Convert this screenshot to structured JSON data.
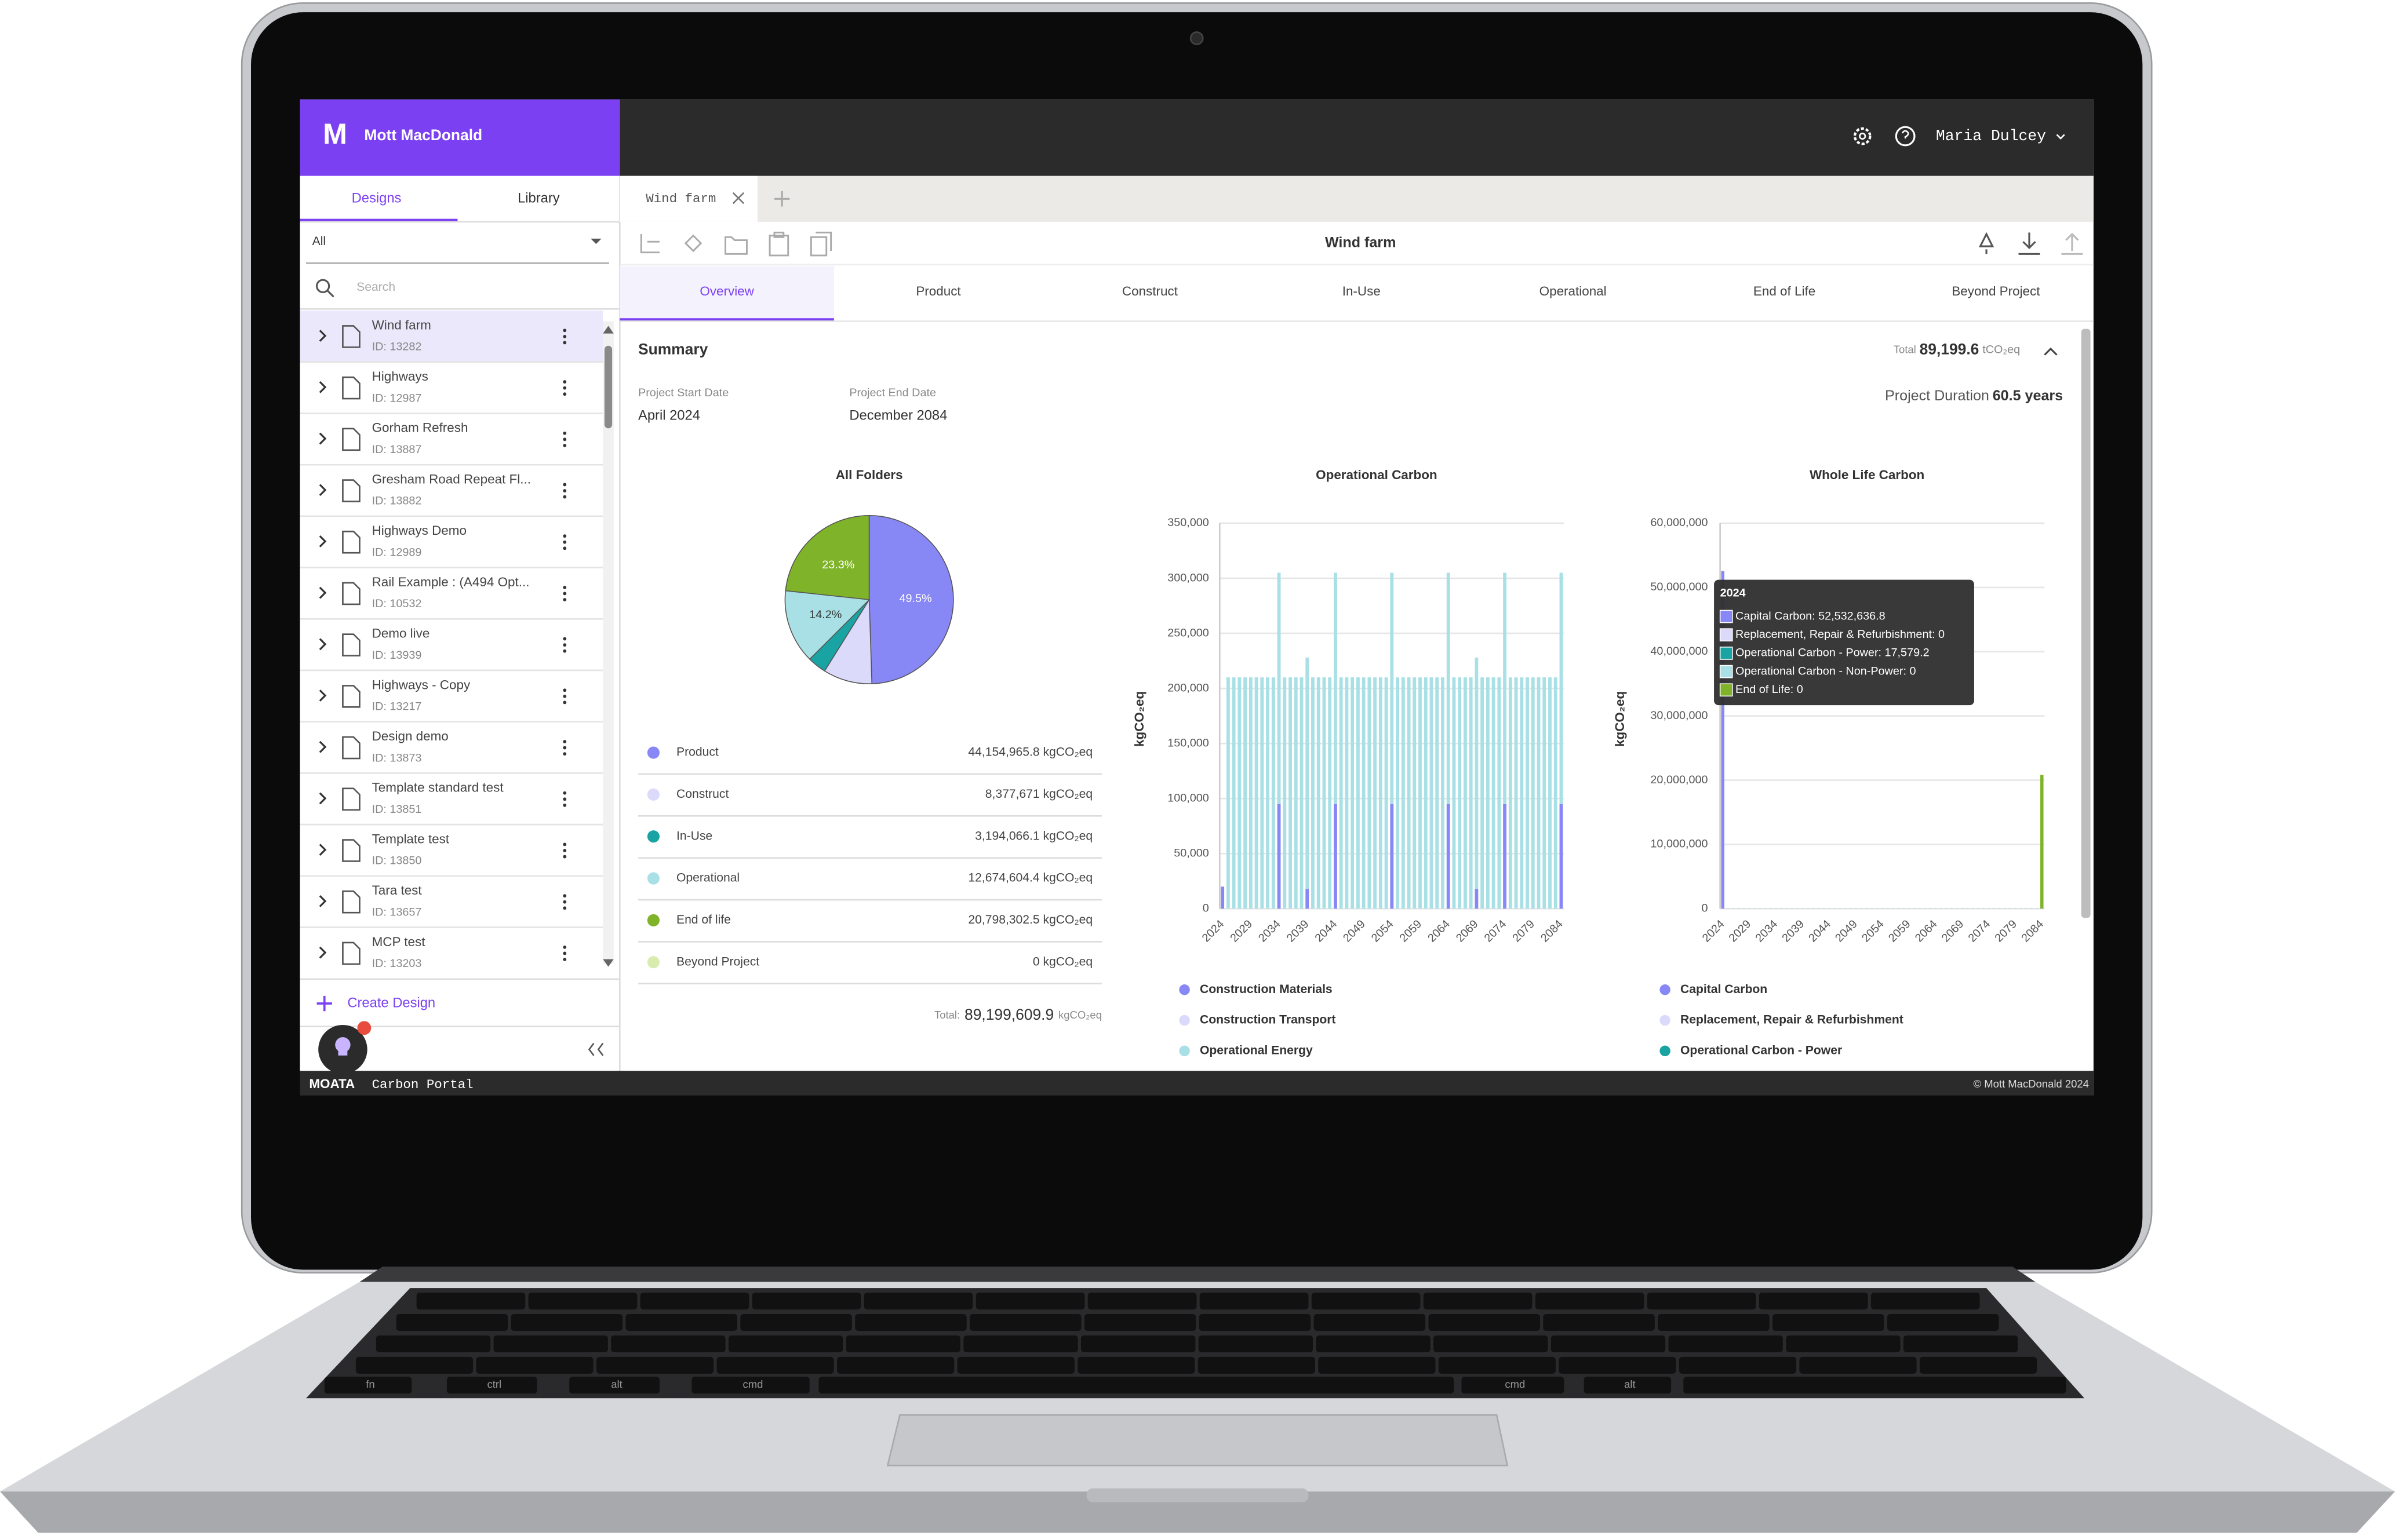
{
  "brand": {
    "logo": "M",
    "name": "Mott MacDonald"
  },
  "user": {
    "name": "Maria Dulcey"
  },
  "sidebar": {
    "tabs": [
      "Designs",
      "Library"
    ],
    "filter": "All",
    "search_placeholder": "Search",
    "designs": [
      {
        "name": "Wind farm",
        "id": "ID: 13282"
      },
      {
        "name": "Highways",
        "id": "ID: 12987"
      },
      {
        "name": "Gorham Refresh",
        "id": "ID: 13887"
      },
      {
        "name": "Gresham Road Repeat Fl...",
        "id": "ID: 13882"
      },
      {
        "name": "Highways Demo",
        "id": "ID: 12989"
      },
      {
        "name": "Rail Example : (A494 Opt...",
        "id": "ID: 10532"
      },
      {
        "name": "Demo live",
        "id": "ID: 13939"
      },
      {
        "name": "Highways - Copy",
        "id": "ID: 13217"
      },
      {
        "name": "Design demo",
        "id": "ID: 13873"
      },
      {
        "name": "Template standard test",
        "id": "ID: 13851"
      },
      {
        "name": "Template test",
        "id": "ID: 13850"
      },
      {
        "name": "Tara test",
        "id": "ID: 13657"
      },
      {
        "name": "MCP test",
        "id": "ID: 13203"
      }
    ],
    "create": "Create Design"
  },
  "open_tab": "Wind farm",
  "toolbar_title": "Wind farm",
  "nav": [
    "Overview",
    "Product",
    "Construct",
    "In-Use",
    "Operational",
    "End of Life",
    "Beyond Project"
  ],
  "summary": {
    "title": "Summary",
    "total_label": "Total",
    "total_value": "89,199.6",
    "total_unit": "tCO₂eq",
    "start_label": "Project Start Date",
    "start": "April 2024",
    "end_label": "Project End Date",
    "end": "December 2084",
    "duration_label": "Project Duration",
    "duration": "60.5 years"
  },
  "pie_chart": {
    "type": "pie",
    "title": "All Folders",
    "categories": [
      "Product",
      "Construct",
      "In-Use",
      "Operational",
      "End of life",
      "Beyond Project"
    ],
    "values": [
      49.5,
      9.4,
      3.6,
      14.2,
      23.3,
      0
    ],
    "value_labels": [
      "49.5%",
      null,
      null,
      "14.2%",
      "23.3%",
      null
    ],
    "colors": [
      "#8787f5",
      "#dcdafa",
      "#1aa3a3",
      "#a8e0e5",
      "#7fb329",
      "#d9ecb0"
    ],
    "amounts": [
      "44,154,965.8 kgCO₂eq",
      "8,377,671 kgCO₂eq",
      "3,194,066.1 kgCO₂eq",
      "12,674,604.4 kgCO₂eq",
      "20,798,302.5 kgCO₂eq",
      "0 kgCO₂eq"
    ],
    "total_label": "Total:",
    "total_value": "89,199,609.9",
    "total_unit": "kgCO₂eq"
  },
  "operational_chart": {
    "type": "bar",
    "stacked": true,
    "title": "Operational Carbon",
    "y_label": "kgCO₂eq",
    "categories": [
      "2024",
      null,
      null,
      null,
      null,
      "2029",
      null,
      null,
      null,
      null,
      "2034",
      null,
      null,
      null,
      null,
      "2039",
      null,
      null,
      null,
      null,
      "2044",
      null,
      null,
      null,
      null,
      "2049",
      null,
      null,
      null,
      null,
      "2054",
      null,
      null,
      null,
      null,
      "2059",
      null,
      null,
      null,
      null,
      "2064",
      null,
      null,
      null,
      null,
      "2069",
      null,
      null,
      null,
      null,
      "2074",
      null,
      null,
      null,
      null,
      "2079",
      null,
      null,
      null,
      null,
      "2084"
    ],
    "ylim": [
      0,
      350000
    ],
    "yticks": [
      0,
      {
        "value": 50000,
        "label": "50,000"
      },
      {
        "value": 100000,
        "label": "100,000"
      },
      {
        "value": 150000,
        "label": "150,000"
      },
      {
        "value": 200000,
        "label": "200,000"
      },
      {
        "value": 250000,
        "label": "250,000"
      },
      {
        "value": 300000,
        "label": "300,000"
      },
      {
        "value": 350000,
        "label": "350,000"
      }
    ],
    "grid": true,
    "series": [
      {
        "name": "Construction Materials",
        "color": "#8787f5",
        "values": [
          20000,
          0,
          0,
          0,
          0,
          0,
          0,
          0,
          0,
          0,
          95000,
          0,
          0,
          0,
          0,
          18000,
          0,
          0,
          0,
          0,
          95000,
          0,
          0,
          0,
          0,
          0,
          0,
          0,
          0,
          0,
          95000,
          0,
          0,
          0,
          0,
          0,
          0,
          0,
          0,
          0,
          95000,
          0,
          0,
          0,
          0,
          18000,
          0,
          0,
          0,
          0,
          95000,
          0,
          0,
          0,
          0,
          0,
          0,
          0,
          0,
          0,
          95000
        ]
      },
      {
        "name": "Construction Transport",
        "color": "#dcdafa",
        "values": [
          0,
          0,
          0,
          0,
          0,
          0,
          0,
          0,
          0,
          0,
          0,
          0,
          0,
          0,
          0,
          0,
          0,
          0,
          0,
          0,
          0,
          0,
          0,
          0,
          0,
          0,
          0,
          0,
          0,
          0,
          0,
          0,
          0,
          0,
          0,
          0,
          0,
          0,
          0,
          0,
          0,
          0,
          0,
          0,
          0,
          0,
          0,
          0,
          0,
          0,
          0,
          0,
          0,
          0,
          0,
          0,
          0,
          0,
          0,
          0,
          0
        ]
      },
      {
        "name": "Operational Energy",
        "color": "#a8e0e5",
        "values": [
          0,
          210000,
          210000,
          210000,
          210000,
          210000,
          210000,
          210000,
          210000,
          210000,
          210000,
          210000,
          210000,
          210000,
          210000,
          210000,
          210000,
          210000,
          210000,
          210000,
          210000,
          210000,
          210000,
          210000,
          210000,
          210000,
          210000,
          210000,
          210000,
          210000,
          210000,
          210000,
          210000,
          210000,
          210000,
          210000,
          210000,
          210000,
          210000,
          210000,
          210000,
          210000,
          210000,
          210000,
          210000,
          210000,
          210000,
          210000,
          210000,
          210000,
          210000,
          210000,
          210000,
          210000,
          210000,
          210000,
          210000,
          210000,
          210000,
          210000,
          210000
        ]
      }
    ]
  },
  "whole_life_chart": {
    "type": "bar",
    "stacked": true,
    "title": "Whole Life Carbon",
    "y_label": "kgCO₂eq",
    "categories": [
      "2024",
      null,
      null,
      null,
      null,
      "2029",
      null,
      null,
      null,
      null,
      "2034",
      null,
      null,
      null,
      null,
      "2039",
      null,
      null,
      null,
      null,
      "2044",
      null,
      null,
      null,
      null,
      "2049",
      null,
      null,
      null,
      null,
      "2054",
      null,
      null,
      null,
      null,
      "2059",
      null,
      null,
      null,
      null,
      "2064",
      null,
      null,
      null,
      null,
      "2069",
      null,
      null,
      null,
      null,
      "2074",
      null,
      null,
      null,
      null,
      "2079",
      null,
      null,
      null,
      null,
      "2084"
    ],
    "ylim": [
      0,
      60000000
    ],
    "yticks": [
      0,
      {
        "value": 10000000,
        "label": "10,000,000"
      },
      {
        "value": 20000000,
        "label": "20,000,000"
      },
      {
        "value": 30000000,
        "label": "30,000,000"
      },
      {
        "value": 40000000,
        "label": "40,000,000"
      },
      {
        "value": 50000000,
        "label": "50,000,000"
      },
      {
        "value": 60000000,
        "label": "60,000,000"
      }
    ],
    "grid": true,
    "series": [
      {
        "name": "Capital Carbon",
        "color": "#8787f5",
        "values": [
          52532636.8,
          0,
          0,
          0,
          0,
          0,
          0,
          0,
          0,
          0,
          0,
          0,
          0,
          0,
          0,
          0,
          0,
          0,
          0,
          0,
          0,
          0,
          0,
          0,
          0,
          0,
          0,
          0,
          0,
          0,
          0,
          0,
          0,
          0,
          0,
          0,
          0,
          0,
          0,
          0,
          0,
          0,
          0,
          0,
          0,
          0,
          0,
          0,
          0,
          0,
          0,
          0,
          0,
          0,
          0,
          0,
          0,
          0,
          0,
          0,
          0
        ]
      },
      {
        "name": "Replacement, Repair & Refurbishment",
        "color": "#dcdafa",
        "values": [
          0,
          0,
          0,
          0,
          0,
          0,
          0,
          0,
          0,
          0,
          0,
          0,
          0,
          0,
          0,
          0,
          0,
          0,
          0,
          0,
          0,
          0,
          0,
          0,
          0,
          0,
          0,
          0,
          0,
          0,
          0,
          0,
          0,
          0,
          0,
          0,
          0,
          0,
          0,
          0,
          0,
          0,
          0,
          0,
          0,
          0,
          0,
          0,
          0,
          0,
          0,
          0,
          0,
          0,
          0,
          0,
          0,
          0,
          0,
          0,
          0
        ]
      },
      {
        "name": "Operational Carbon - Power",
        "color": "#1aa3a3",
        "values": [
          17579.2,
          17579.2,
          17579.2,
          17579.2,
          17579.2,
          17579.2,
          17579.2,
          17579.2,
          17579.2,
          17579.2,
          17579.2,
          17579.2,
          17579.2,
          17579.2,
          17579.2,
          17579.2,
          17579.2,
          17579.2,
          17579.2,
          17579.2,
          17579.2,
          17579.2,
          17579.2,
          17579.2,
          17579.2,
          17579.2,
          17579.2,
          17579.2,
          17579.2,
          17579.2,
          17579.2,
          17579.2,
          17579.2,
          17579.2,
          17579.2,
          17579.2,
          17579.2,
          17579.2,
          17579.2,
          17579.2,
          17579.2,
          17579.2,
          17579.2,
          17579.2,
          17579.2,
          17579.2,
          17579.2,
          17579.2,
          17579.2,
          17579.2,
          17579.2,
          17579.2,
          17579.2,
          17579.2,
          17579.2,
          17579.2,
          17579.2,
          17579.2,
          17579.2,
          17579.2,
          17579.2
        ]
      },
      {
        "name": "End of Life",
        "color": "#7fb329",
        "values": [
          0,
          0,
          0,
          0,
          0,
          0,
          0,
          0,
          0,
          0,
          0,
          0,
          0,
          0,
          0,
          0,
          0,
          0,
          0,
          0,
          0,
          0,
          0,
          0,
          0,
          0,
          0,
          0,
          0,
          0,
          0,
          0,
          0,
          0,
          0,
          0,
          0,
          0,
          0,
          0,
          0,
          0,
          0,
          0,
          0,
          0,
          0,
          0,
          0,
          0,
          0,
          0,
          0,
          0,
          0,
          0,
          0,
          0,
          0,
          0,
          20798302.5
        ]
      }
    ],
    "tooltip": {
      "title": "2024",
      "lines": [
        "Capital Carbon: 52,532,636.8",
        "Replacement, Repair & Refurbishment: 0",
        "Operational Carbon - Power: 17,579.2",
        "Operational Carbon - Non-Power: 0",
        "End of Life: 0"
      ],
      "line_colors": [
        "#8787f5",
        "#dcdafa",
        "#1aa3a3",
        "#a8e0e5",
        "#7fb329"
      ]
    }
  },
  "footer": {
    "product": "MOATA",
    "subtitle": "Carbon Portal",
    "copyright": "© Mott MacDonald 2024"
  },
  "keyboard": {
    "bottom_row": [
      "fn",
      "ctrl",
      "alt",
      "cmd",
      "cmd",
      "alt"
    ]
  }
}
